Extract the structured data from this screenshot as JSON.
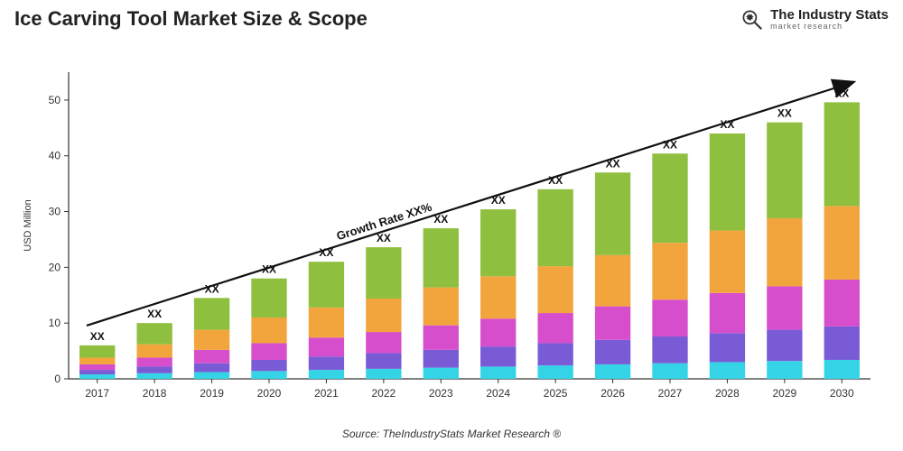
{
  "header": {
    "title": "Ice Carving Tool Market Size & Scope",
    "logo": {
      "main": "The Industry Stats",
      "sub": "market research"
    }
  },
  "chart": {
    "type": "stacked-bar",
    "ylabel": "USD Million",
    "ylim": [
      0,
      55
    ],
    "yticks": [
      0,
      10,
      20,
      30,
      40,
      50
    ],
    "categories": [
      "2017",
      "2018",
      "2019",
      "2020",
      "2021",
      "2022",
      "2023",
      "2024",
      "2025",
      "2026",
      "2027",
      "2028",
      "2029",
      "2030"
    ],
    "bar_label": "XX",
    "series_colors": [
      "#34d4e6",
      "#7a5bd6",
      "#d64ecb",
      "#f2a53c",
      "#8fbf3f"
    ],
    "stacks": [
      [
        0.8,
        0.8,
        1.0,
        1.2,
        2.2
      ],
      [
        1.0,
        1.2,
        1.6,
        2.4,
        3.8
      ],
      [
        1.2,
        1.6,
        2.4,
        3.6,
        5.7
      ],
      [
        1.4,
        2.0,
        3.0,
        4.6,
        7.0
      ],
      [
        1.6,
        2.4,
        3.4,
        5.4,
        8.2
      ],
      [
        1.8,
        2.8,
        3.8,
        6.0,
        9.2
      ],
      [
        2.0,
        3.2,
        4.4,
        6.8,
        10.6
      ],
      [
        2.2,
        3.6,
        5.0,
        7.6,
        12.0
      ],
      [
        2.4,
        4.0,
        5.4,
        8.4,
        13.8
      ],
      [
        2.6,
        4.4,
        6.0,
        9.2,
        14.8
      ],
      [
        2.8,
        4.8,
        6.6,
        10.2,
        16.0
      ],
      [
        3.0,
        5.2,
        7.2,
        11.2,
        17.4
      ],
      [
        3.2,
        5.6,
        7.8,
        12.2,
        17.2
      ],
      [
        3.4,
        6.0,
        8.4,
        13.2,
        18.6
      ]
    ],
    "growth_label": "Growth Rate XX%",
    "bar_width": 0.62,
    "background": "#ffffff",
    "label_fontsize": 12
  },
  "source": "Source: TheIndustryStats Market Research ®"
}
